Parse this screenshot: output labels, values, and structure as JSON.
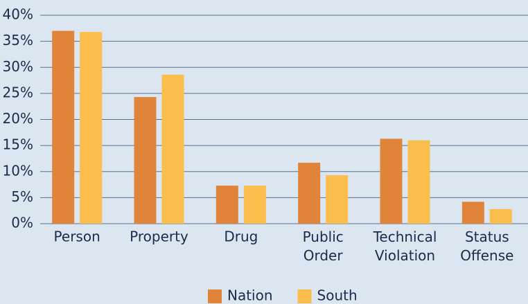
{
  "chart_data": {
    "type": "bar",
    "categories": [
      "Person",
      "Property",
      "Drug",
      "Public Order",
      "Technical Violation",
      "Status Offense"
    ],
    "series": [
      {
        "name": "Nation",
        "color": "#e0843a",
        "values": [
          37,
          24.3,
          7.3,
          11.7,
          16.3,
          4.2
        ]
      },
      {
        "name": "South",
        "color": "#fbbd4c",
        "values": [
          36.8,
          28.6,
          7.3,
          9.3,
          16.0,
          2.8
        ]
      }
    ],
    "ylim": [
      0,
      40
    ],
    "yticks": [
      {
        "value": 0,
        "label": "0%"
      },
      {
        "value": 5,
        "label": "5%"
      },
      {
        "value": 10,
        "label": "10%"
      },
      {
        "value": 15,
        "label": "15%"
      },
      {
        "value": 20,
        "label": "20%"
      },
      {
        "value": 25,
        "label": "25%"
      },
      {
        "value": 30,
        "label": "30%"
      },
      {
        "value": 35,
        "label": "35%"
      },
      {
        "value": 40,
        "label": "40%"
      }
    ],
    "grid": true,
    "legend": "bottom"
  }
}
